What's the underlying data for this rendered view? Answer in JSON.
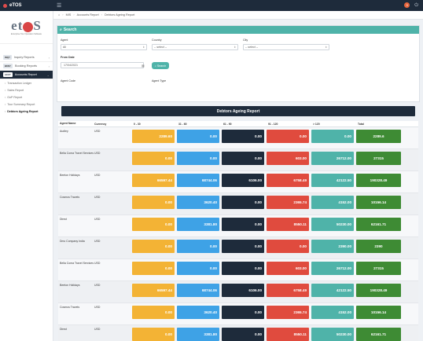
{
  "app": {
    "title": "eTOS",
    "notification_count": "9"
  },
  "sidebar": {
    "logo_text_left": "et",
    "logo_text_right": "S",
    "logo_tagline": "Enterprise Tour Operation Software",
    "items": [
      {
        "pill": "INQY",
        "label": "Inquiry Reports"
      },
      {
        "pill": "BKNY",
        "label": "Booking Reports"
      },
      {
        "pill": "ACCT",
        "label": "Accounts Report"
      }
    ],
    "sub_items": [
      {
        "label": "Transaction Ledger"
      },
      {
        "label": "Sales Report"
      },
      {
        "label": "GoP Report"
      },
      {
        "label": "Tour Summary Report"
      },
      {
        "label": "Debtors Ageing Report"
      }
    ]
  },
  "breadcrumb": {
    "home": "⌂",
    "items": [
      "MIS",
      "Accounts Report",
      "Debtors Ageing Report"
    ]
  },
  "search": {
    "title": "Search",
    "agent_label": "Agent",
    "agent_value": "All",
    "country_label": "Country",
    "country_value": "-- select --",
    "city_label": "City",
    "city_value": "-- select --",
    "from_date_label": "From Date",
    "from_date_value": "17/04/2021",
    "search_button": "Search",
    "agent_code_label": "Agent Code",
    "agent_type_label": "Agent Type"
  },
  "report": {
    "title": "Debtors Ageing Report",
    "columns": [
      "Agent Name",
      "Currency",
      "0 - 30",
      "31 - 60",
      "61 - 90",
      "91 - 120",
      "> 120",
      "Total"
    ],
    "colors": [
      "#f3b335",
      "#3ea2e6",
      "#1e2b3b",
      "#e04b3e",
      "#4fb3a9",
      "#3e8b34"
    ],
    "rows": [
      {
        "name": "Audley",
        "currency": "USD",
        "values": [
          "2289.60",
          "0.00",
          "0.00",
          "0.00",
          "0.00",
          "2289.6"
        ]
      },
      {
        "name": "Bella Coma Travel Services",
        "currency": "USD",
        "values": [
          "0.00",
          "0.00",
          "0.00",
          "603.00",
          "26712.00",
          "27315"
        ]
      },
      {
        "name": "Beeton Holidays",
        "currency": "USD",
        "values": [
          "66597.44",
          "68744.06",
          "6106.00",
          "6758.49",
          "42122.50",
          "190328.49"
        ]
      },
      {
        "name": "Cosmos Travels",
        "currency": "USD",
        "values": [
          "0.00",
          "3620.40",
          "0.00",
          "2365.74",
          "4152.00",
          "10156.14"
        ]
      },
      {
        "name": "Direct",
        "currency": "USD",
        "values": [
          "0.00",
          "3381.80",
          "0.00",
          "8550.11",
          "50230.00",
          "62161.71"
        ]
      },
      {
        "name": "Dmc Company India",
        "currency": "USD",
        "values": [
          "0.00",
          "0.00",
          "0.00",
          "0.00",
          "2390.00",
          "2390"
        ]
      },
      {
        "name": "Bella Coma Travel Services",
        "currency": "USD",
        "values": [
          "0.00",
          "0.00",
          "0.00",
          "603.00",
          "26712.00",
          "27315"
        ]
      },
      {
        "name": "Beeton Holidays",
        "currency": "USD",
        "values": [
          "66597.44",
          "68744.06",
          "6106.00",
          "6758.49",
          "42122.50",
          "190328.49"
        ]
      },
      {
        "name": "Cosmos Travels",
        "currency": "USD",
        "values": [
          "0.00",
          "3620.40",
          "0.00",
          "2365.74",
          "4152.00",
          "10156.14"
        ]
      },
      {
        "name": "Direct",
        "currency": "USD",
        "values": [
          "0.00",
          "3381.80",
          "0.00",
          "8550.11",
          "50230.00",
          "62161.71"
        ]
      }
    ]
  }
}
